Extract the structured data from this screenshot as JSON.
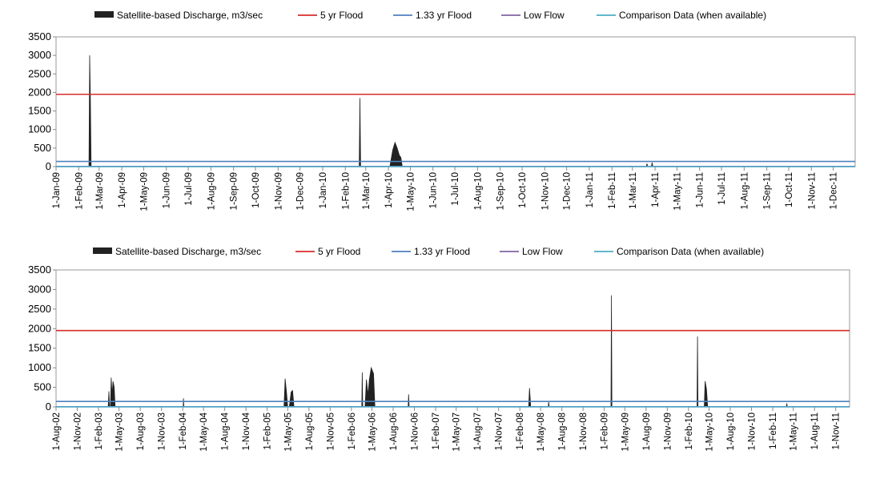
{
  "chart_data": [
    {
      "type": "area",
      "title": "",
      "xlabel": "",
      "ylabel": "",
      "ylim": [
        0,
        3500
      ],
      "yticks": [
        0,
        500,
        1000,
        1500,
        2000,
        2500,
        3000,
        3500
      ],
      "grid": false,
      "legend_position": "top",
      "legend": [
        {
          "label": "Satellite-based Discharge, m3/sec",
          "symbol": "area"
        },
        {
          "label": "5 yr Flood",
          "symbol": "line"
        },
        {
          "label": "1.33 yr Flood",
          "symbol": "line"
        },
        {
          "label": "Low Flow",
          "symbol": "line"
        },
        {
          "label": "Comparison Data (when available)",
          "symbol": "line"
        }
      ],
      "x_tick_labels": [
        "1-Jan-09",
        "1-Feb-09",
        "1-Mar-09",
        "1-Apr-09",
        "1-May-09",
        "1-Jun-09",
        "1-Jul-09",
        "1-Aug-09",
        "1-Sep-09",
        "1-Oct-09",
        "1-Nov-09",
        "1-Dec-09",
        "1-Jan-10",
        "1-Feb-10",
        "1-Mar-10",
        "1-Apr-10",
        "1-May-10",
        "1-Jun-10",
        "1-Jul-10",
        "1-Aug-10",
        "1-Sep-10",
        "1-Oct-10",
        "1-Nov-10",
        "1-Dec-10",
        "1-Jan-11",
        "1-Feb-11",
        "1-Mar-11",
        "1-Apr-11",
        "1-May-11",
        "1-Jun-11",
        "1-Jul-11",
        "1-Aug-11",
        "1-Sep-11",
        "1-Oct-11",
        "1-Nov-11",
        "1-Dec-11"
      ],
      "x_range": [
        "1-Jan-09",
        "31-Dec-11"
      ],
      "series": [
        {
          "name": "Satellite-based Discharge, m3/sec",
          "color": "#222222",
          "points": [
            [
              "15-Feb-09",
              0
            ],
            [
              "16-Feb-09",
              3000
            ],
            [
              "17-Feb-09",
              1800
            ],
            [
              "18-Feb-09",
              0
            ],
            [
              "20-Feb-10",
              0
            ],
            [
              "21-Feb-10",
              1850
            ],
            [
              "22-Feb-10",
              0
            ],
            [
              "3-Apr-10",
              0
            ],
            [
              "7-Apr-10",
              450
            ],
            [
              "10-Apr-10",
              650
            ],
            [
              "13-Apr-10",
              500
            ],
            [
              "16-Apr-10",
              300
            ],
            [
              "18-Apr-10",
              250
            ],
            [
              "20-Apr-10",
              0
            ],
            [
              "20-Mar-11",
              0
            ],
            [
              "21-Mar-11",
              80
            ],
            [
              "22-Mar-11",
              0
            ],
            [
              "27-Mar-11",
              0
            ],
            [
              "28-Mar-11",
              110
            ],
            [
              "29-Mar-11",
              0
            ]
          ]
        },
        {
          "name": "5 yr Flood",
          "color": "#d92b2b",
          "value": 1950
        },
        {
          "name": "1.33 yr Flood",
          "color": "#4f81bd",
          "value": 140
        },
        {
          "name": "Low Flow",
          "color": "#8064a2",
          "value": 5
        },
        {
          "name": "Comparison Data (when available)",
          "color": "#4bacc6",
          "value": 0
        }
      ]
    },
    {
      "type": "area",
      "title": "",
      "xlabel": "",
      "ylabel": "",
      "ylim": [
        0,
        3500
      ],
      "yticks": [
        0,
        500,
        1000,
        1500,
        2000,
        2500,
        3000,
        3500
      ],
      "grid": false,
      "legend_position": "top",
      "legend": [
        {
          "label": "Satellite-based Discharge, m3/sec",
          "symbol": "area"
        },
        {
          "label": "5 yr Flood",
          "symbol": "line"
        },
        {
          "label": "1.33 yr Flood",
          "symbol": "line"
        },
        {
          "label": "Low Flow",
          "symbol": "line"
        },
        {
          "label": "Comparison Data (when available)",
          "symbol": "line"
        }
      ],
      "x_tick_labels": [
        "1-Aug-02",
        "1-Nov-02",
        "1-Feb-03",
        "1-May-03",
        "1-Aug-03",
        "1-Nov-03",
        "1-Feb-04",
        "1-May-04",
        "1-Aug-04",
        "1-Nov-04",
        "1-Feb-05",
        "1-May-05",
        "1-Aug-05",
        "1-Nov-05",
        "1-Feb-06",
        "1-May-06",
        "1-Aug-06",
        "1-Nov-06",
        "1-Feb-07",
        "1-May-07",
        "1-Aug-07",
        "1-Nov-07",
        "1-Feb-08",
        "1-May-08",
        "1-Aug-08",
        "1-Nov-08",
        "1-Feb-09",
        "1-May-09",
        "1-Aug-09",
        "1-Nov-09",
        "1-Feb-10",
        "1-May-10",
        "1-Aug-10",
        "1-Nov-10",
        "1-Feb-11",
        "1-May-11",
        "1-Aug-11",
        "1-Nov-11"
      ],
      "x_range": [
        "1-Aug-02",
        "31-Dec-11"
      ],
      "series": [
        {
          "name": "Satellite-based Discharge, m3/sec",
          "color": "#222222",
          "points": [
            [
              "15-Mar-03",
              0
            ],
            [
              "18-Mar-03",
              400
            ],
            [
              "21-Mar-03",
              0
            ],
            [
              "25-Mar-03",
              0
            ],
            [
              "28-Mar-03",
              750
            ],
            [
              "1-Apr-03",
              300
            ],
            [
              "5-Apr-03",
              650
            ],
            [
              "10-Apr-03",
              500
            ],
            [
              "14-Apr-03",
              0
            ],
            [
              "3-Feb-04",
              0
            ],
            [
              "4-Feb-04",
              220
            ],
            [
              "6-Feb-04",
              0
            ],
            [
              "15-Apr-05",
              0
            ],
            [
              "20-Apr-05",
              720
            ],
            [
              "26-Apr-05",
              350
            ],
            [
              "1-May-05",
              0
            ],
            [
              "8-May-05",
              0
            ],
            [
              "16-May-05",
              380
            ],
            [
              "22-May-05",
              420
            ],
            [
              "28-May-05",
              0
            ],
            [
              "18-Mar-06",
              0
            ],
            [
              "20-Mar-06",
              880
            ],
            [
              "22-Mar-06",
              0
            ],
            [
              "1-Apr-06",
              0
            ],
            [
              "7-Apr-06",
              700
            ],
            [
              "14-Apr-06",
              300
            ],
            [
              "20-Apr-06",
              700
            ],
            [
              "28-Apr-06",
              1000
            ],
            [
              "8-May-06",
              850
            ],
            [
              "14-May-06",
              0
            ],
            [
              "5-Oct-06",
              0
            ],
            [
              "7-Oct-06",
              320
            ],
            [
              "9-Oct-06",
              0
            ],
            [
              "10-Mar-08",
              0
            ],
            [
              "14-Mar-08",
              480
            ],
            [
              "19-Mar-08",
              0
            ],
            [
              "3-Jun-08",
              0
            ],
            [
              "5-Jun-08",
              130
            ],
            [
              "7-Jun-08",
              0
            ],
            [
              "2-Mar-09",
              0
            ],
            [
              "4-Mar-09",
              2850
            ],
            [
              "6-Mar-09",
              0
            ],
            [
              "10-Mar-10",
              0
            ],
            [
              "12-Mar-10",
              1800
            ],
            [
              "14-Mar-10",
              0
            ],
            [
              "10-Apr-10",
              0
            ],
            [
              "14-Apr-10",
              660
            ],
            [
              "20-Apr-10",
              450
            ],
            [
              "25-Apr-10",
              0
            ],
            [
              "1-Apr-11",
              0
            ],
            [
              "3-Apr-11",
              90
            ],
            [
              "5-Apr-11",
              0
            ]
          ]
        },
        {
          "name": "5 yr Flood",
          "color": "#d92b2b",
          "value": 1950
        },
        {
          "name": "1.33 yr Flood",
          "color": "#4f81bd",
          "value": 140
        },
        {
          "name": "Low Flow",
          "color": "#8064a2",
          "value": 5
        },
        {
          "name": "Comparison Data (when available)",
          "color": "#4bacc6",
          "value": 0
        }
      ]
    }
  ]
}
